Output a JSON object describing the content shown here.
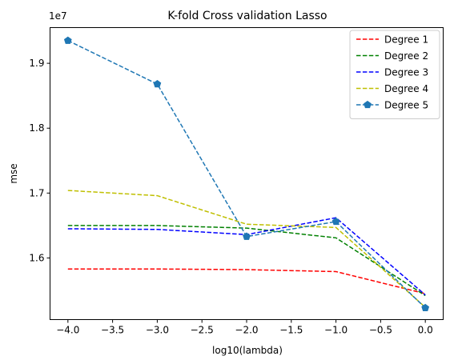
{
  "chart_data": {
    "type": "line",
    "title": "K-fold Cross validation Lasso",
    "xlabel": "log10(lambda)",
    "ylabel": "mse",
    "y_offset_label": "1e7",
    "xlim": [
      -4.2,
      0.2
    ],
    "ylim": [
      15.05,
      19.55
    ],
    "xticks": [
      -4.0,
      -3.5,
      -3.0,
      -2.5,
      -2.0,
      -1.5,
      -1.0,
      -0.5,
      0.0
    ],
    "xtick_labels": [
      "−4.0",
      "−3.5",
      "−3.0",
      "−2.5",
      "−2.0",
      "−1.5",
      "−1.0",
      "−0.5",
      "0.0"
    ],
    "yticks": [
      16.0,
      17.0,
      18.0,
      19.0
    ],
    "ytick_labels": [
      "1.6",
      "1.7",
      "1.8",
      "1.9"
    ],
    "grid": false,
    "legend_position": "top-right",
    "x": [
      -4,
      -3,
      -2,
      -1,
      0
    ],
    "series": [
      {
        "name": "Degree 1",
        "color": "#ff0000",
        "marker": "none",
        "values": [
          15.83,
          15.83,
          15.82,
          15.79,
          15.45
        ]
      },
      {
        "name": "Degree 2",
        "color": "#008000",
        "marker": "none",
        "values": [
          16.5,
          16.5,
          16.46,
          16.31,
          15.42
        ]
      },
      {
        "name": "Degree 3",
        "color": "#0000ff",
        "marker": "none",
        "values": [
          16.45,
          16.44,
          16.36,
          16.62,
          15.43
        ]
      },
      {
        "name": "Degree 4",
        "color": "#bfbf00",
        "marker": "none",
        "values": [
          17.04,
          16.96,
          16.52,
          16.47,
          15.24
        ]
      },
      {
        "name": "Degree 5",
        "color": "#1f77b4",
        "marker": "pentagon",
        "values": [
          19.35,
          18.68,
          16.33,
          16.56,
          15.23
        ]
      }
    ]
  }
}
